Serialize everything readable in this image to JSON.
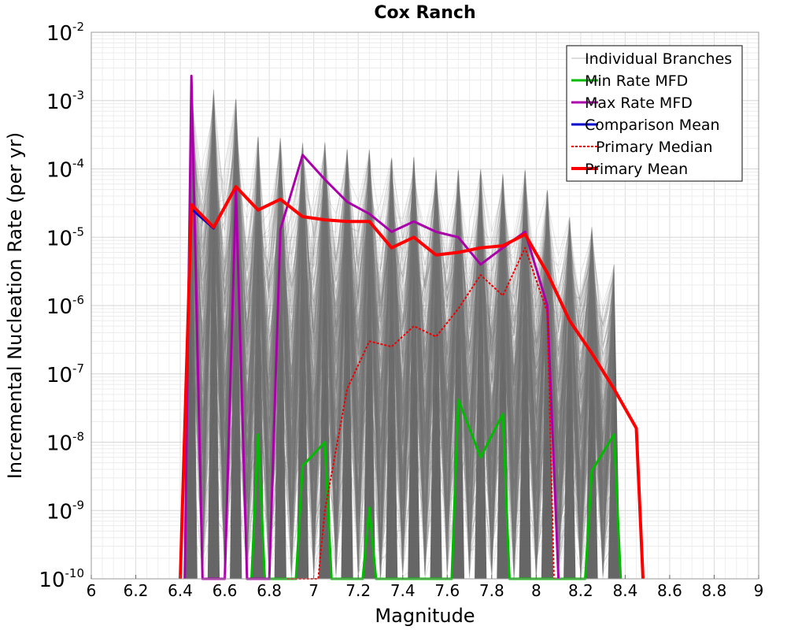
{
  "chart_data": {
    "type": "line",
    "title": "Cox Ranch",
    "xlabel": "Magnitude",
    "ylabel": "Incremental Nucleation Rate (per yr)",
    "xlim": [
      6,
      9
    ],
    "ylim_exponents": [
      -10,
      -2
    ],
    "yscale": "log",
    "x_ticks": [
      "6",
      "6.2",
      "6.4",
      "6.6",
      "6.8",
      "7",
      "7.2",
      "7.4",
      "7.6",
      "7.8",
      "8",
      "8.2",
      "8.4",
      "8.6",
      "8.8",
      "9"
    ],
    "y_tick_base": "10",
    "y_tick_exponents": [
      "-10",
      "-9",
      "-8",
      "-7",
      "-6",
      "-5",
      "-4",
      "-3",
      "-2"
    ],
    "grid": true,
    "legend_position": "top-right",
    "colors": {
      "branches": "#555555",
      "min_rate": "#00bb00",
      "max_rate": "#aa00aa",
      "comparison_mean": "#0000cc",
      "primary_median": "#ee0000",
      "primary_mean": "#ff0000"
    },
    "series": [
      {
        "name": "Individual Branches",
        "key": "branches",
        "style": "thin",
        "peak_x": [
          6.45,
          6.55,
          6.65,
          6.75,
          6.85,
          6.95,
          7.05,
          7.15,
          7.25,
          7.35,
          7.45,
          7.55,
          7.65,
          7.75,
          7.85,
          7.95,
          8.05,
          8.15,
          8.25,
          8.35
        ],
        "peak_max": [
          0.0022,
          0.0015,
          0.0011,
          0.0003,
          0.0003,
          0.00025,
          0.00025,
          0.0002,
          0.0002,
          0.00015,
          0.00015,
          0.0001,
          0.0001,
          0.0001,
          9e-05,
          0.0001,
          5e-05,
          2e-05,
          1.5e-05,
          4e-06
        ],
        "peak_min": [
          1e-10,
          1e-10,
          1e-10,
          1e-10,
          1e-10,
          1e-10,
          1e-10,
          1e-10,
          1e-10,
          1e-10,
          1e-10,
          1e-10,
          1e-10,
          1e-10,
          1e-10,
          1e-10,
          1e-10,
          1e-10,
          1e-10,
          1e-10
        ]
      },
      {
        "name": "Min Rate MFD",
        "key": "min_rate",
        "style": "solid",
        "x": [
          6.72,
          6.75,
          6.78,
          6.92,
          6.95,
          7.05,
          7.08,
          7.22,
          7.25,
          7.28,
          7.62,
          7.65,
          7.75,
          7.85,
          7.88,
          8.22,
          8.25,
          8.35,
          8.38
        ],
        "y": [
          1e-10,
          1.3e-08,
          1e-10,
          1e-10,
          4.5e-09,
          1e-08,
          1e-10,
          1e-10,
          1.1e-09,
          1e-10,
          1e-10,
          4.2e-08,
          6e-09,
          2.6e-08,
          1e-10,
          1e-10,
          3.8e-09,
          1.3e-08,
          1e-10
        ]
      },
      {
        "name": "Max Rate MFD",
        "key": "max_rate",
        "style": "solid",
        "x": [
          6.42,
          6.45,
          6.5,
          6.6,
          6.65,
          6.7,
          6.8,
          6.85,
          6.95,
          7.05,
          7.15,
          7.25,
          7.35,
          7.45,
          7.55,
          7.65,
          7.75,
          7.85,
          7.95,
          8.05,
          8.1
        ],
        "y": [
          1e-10,
          0.0023,
          1e-10,
          1e-10,
          5e-05,
          1e-10,
          1e-10,
          1.3e-05,
          0.00016,
          7e-05,
          3.3e-05,
          2.2e-05,
          1.2e-05,
          1.7e-05,
          1.2e-05,
          1e-05,
          4e-06,
          7e-06,
          1.2e-05,
          1e-06,
          1e-10
        ]
      },
      {
        "name": "Comparison Mean",
        "key": "comparison_mean",
        "style": "solid",
        "x": [
          6.45,
          6.55,
          6.65
        ],
        "y": [
          2.6e-05,
          1.35e-05,
          5.5e-05
        ]
      },
      {
        "name": "Primary Median",
        "key": "primary_median",
        "style": "dotted",
        "x": [
          6.88,
          6.95,
          7.02,
          7.05,
          7.15,
          7.25,
          7.35,
          7.45,
          7.55,
          7.65,
          7.75,
          7.85,
          7.95,
          8.05,
          8.08
        ],
        "y": [
          1e-10,
          1e-10,
          1e-10,
          1e-09,
          6e-08,
          3e-07,
          2.5e-07,
          5e-07,
          3.5e-07,
          9e-07,
          2.8e-06,
          1.4e-06,
          7e-06,
          8e-07,
          1e-10
        ]
      },
      {
        "name": "Primary Mean",
        "key": "primary_mean",
        "style": "thick",
        "x": [
          6.4,
          6.45,
          6.55,
          6.65,
          6.75,
          6.85,
          6.95,
          7.05,
          7.15,
          7.25,
          7.35,
          7.45,
          7.55,
          7.65,
          7.75,
          7.85,
          7.95,
          8.05,
          8.15,
          8.25,
          8.35,
          8.45,
          8.48
        ],
        "y": [
          1e-10,
          3e-05,
          1.4e-05,
          5.5e-05,
          2.5e-05,
          3.6e-05,
          2e-05,
          1.8e-05,
          1.7e-05,
          1.7e-05,
          7e-06,
          1e-05,
          5.5e-06,
          6e-06,
          7e-06,
          7.5e-06,
          1.1e-05,
          3e-06,
          6e-07,
          2e-07,
          6e-08,
          1.6e-08,
          1e-10
        ]
      }
    ]
  }
}
